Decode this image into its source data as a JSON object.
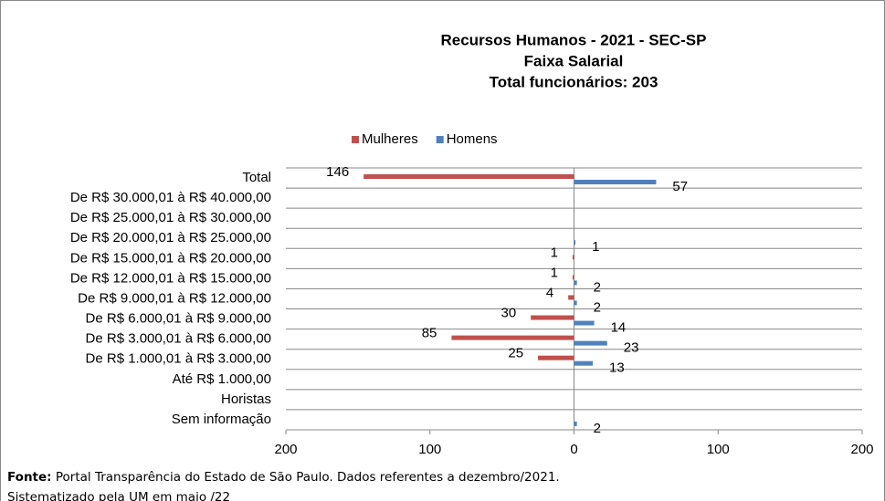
{
  "chart_data": {
    "type": "hbar-diverging",
    "title": [
      "Recursos Humanos - 2021 - SEC-SP",
      "Faixa Salarial",
      "Total funcionários: 203"
    ],
    "categories": [
      "Total",
      "De R$ 30.000,01 à R$ 40.000,00",
      "De R$ 25.000,01 à R$ 30.000,00",
      "De R$ 20.000,01 à R$ 25.000,00",
      "De R$ 15.000,01 à R$ 20.000,00",
      "De R$ 12.000,01 à R$ 15.000,00",
      "De R$ 9.000,01 à R$ 12.000,00",
      "De R$ 6.000,01 à R$ 9.000,00",
      "De R$ 3.000,01 à R$ 6.000,00",
      "De R$ 1.000,01 à R$ 3.000,00",
      "Até R$ 1.000,00",
      "Horistas",
      "Sem informação"
    ],
    "series": [
      {
        "name": "Mulheres",
        "color": "#c0504d",
        "values": [
          -146,
          null,
          null,
          null,
          -1,
          -1,
          -4,
          -30,
          -85,
          -25,
          null,
          null,
          null
        ],
        "value_labels": [
          "146",
          null,
          null,
          null,
          "1",
          "1",
          "4",
          "30",
          "85",
          "25",
          null,
          null,
          null
        ]
      },
      {
        "name": "Homens",
        "color": "#4f81bd",
        "values": [
          57,
          null,
          null,
          1,
          null,
          2,
          2,
          14,
          23,
          13,
          null,
          null,
          2
        ],
        "value_labels": [
          "57",
          null,
          null,
          "1",
          null,
          "2",
          "2",
          "14",
          "23",
          "13",
          null,
          null,
          "2"
        ]
      }
    ],
    "xlim": [
      -200,
      200
    ],
    "xticks": [
      {
        "value": -200,
        "label": "200"
      },
      {
        "value": -100,
        "label": "100"
      },
      0,
      100,
      200
    ],
    "legend": "top"
  },
  "footer": {
    "source_label": "Fonte:",
    "source_text": " Portal Transparência do Estado de São Paulo. Dados referentes a dezembro/2021.",
    "line2": "Sistematizado pela UM em maio /22"
  }
}
